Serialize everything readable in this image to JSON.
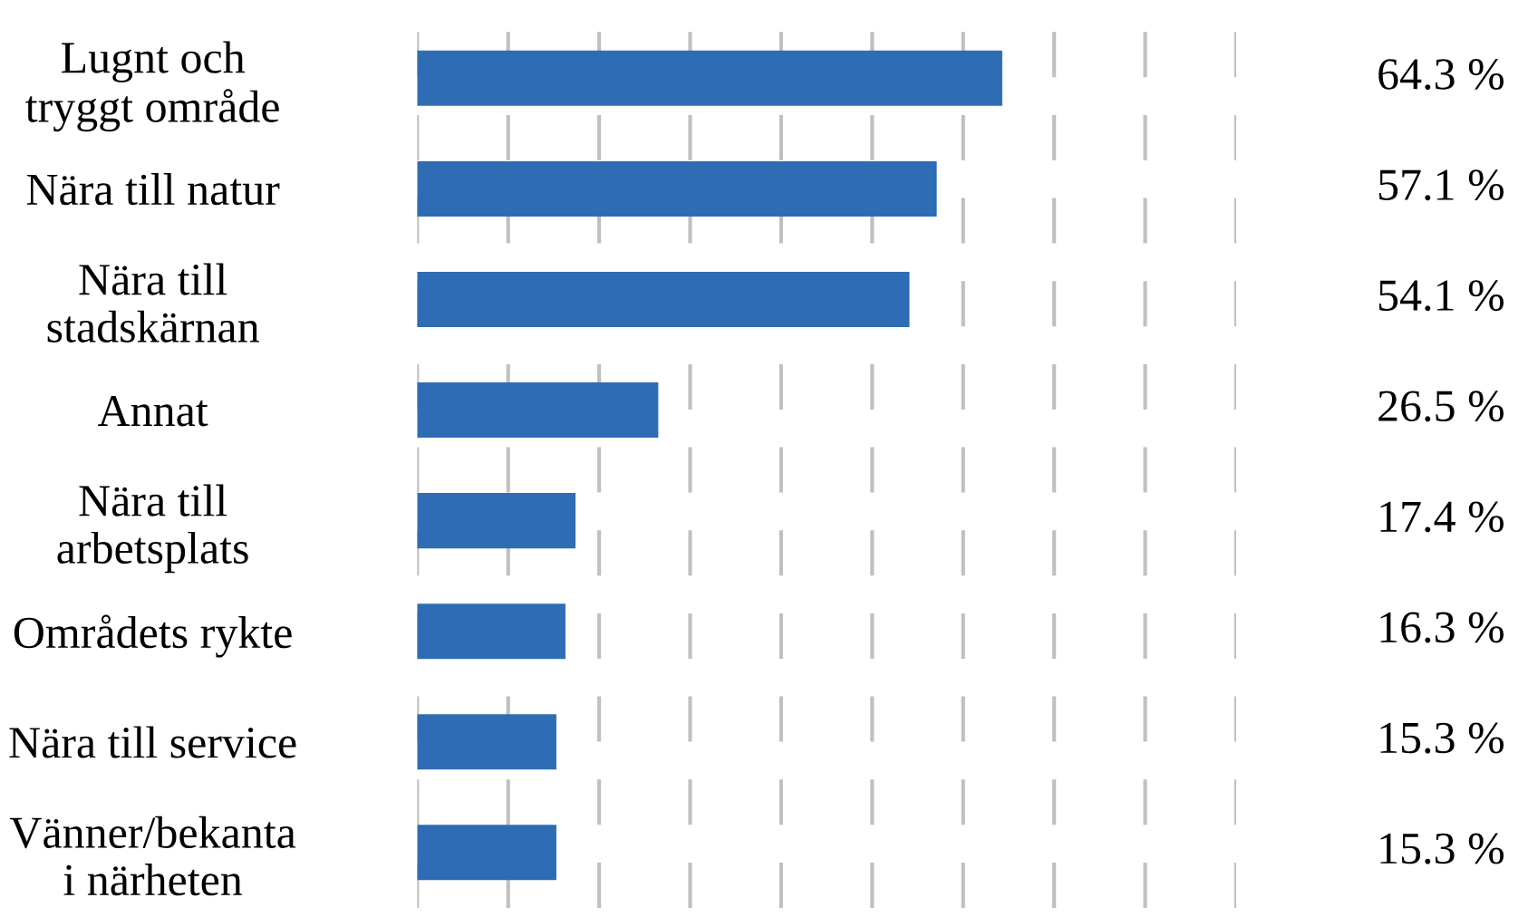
{
  "chart_data": {
    "type": "bar",
    "orientation": "horizontal",
    "categories": [
      "Lugnt och\ntryggt område",
      "Nära till natur",
      "Nära till\nstadskärnan",
      "Annat",
      "Nära till\narbetsplats",
      "Områdets rykte",
      "Nära till service",
      "Vänner/bekanta\ni närheten"
    ],
    "values": [
      64.3,
      57.1,
      54.1,
      26.5,
      17.4,
      16.3,
      15.3,
      15.3
    ],
    "value_labels": [
      "64.3 %",
      "57.1 %",
      "54.1 %",
      "26.5 %",
      "17.4 %",
      "16.3 %",
      "15.3 %",
      "15.3 %"
    ],
    "color": "#2e6db4",
    "xlim": [
      0,
      90
    ],
    "xticks": [
      {
        "value": 0,
        "label": null
      },
      {
        "value": 10,
        "label": null
      },
      {
        "value": 20,
        "label": null
      },
      {
        "value": 30,
        "label": null
      },
      {
        "value": 40,
        "label": null
      },
      {
        "value": 50,
        "label": null
      },
      {
        "value": 60,
        "label": null
      },
      {
        "value": 70,
        "label": null
      },
      {
        "value": 80,
        "label": null
      },
      {
        "value": 90,
        "label": null
      }
    ],
    "grid": "x",
    "line_style": "dashed",
    "tick_labels": "y"
  }
}
